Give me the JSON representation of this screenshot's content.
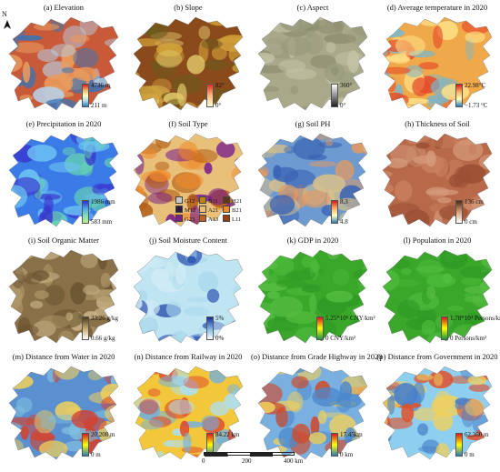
{
  "north_label": "N",
  "panels": [
    {
      "title": "(a) Elevation",
      "max": "4736 m",
      "min": "211 m",
      "legend": [
        "#d7191c",
        "#fdae61",
        "#ffffbf",
        "#abd9e9",
        "#2c7bb6"
      ],
      "fill": [
        "#c85a3a",
        "#e89a5c",
        "#b7d0e6",
        "#3a74b5"
      ]
    },
    {
      "title": "(b) Slope",
      "max": "82°",
      "min": "0°",
      "legend": [
        "#d7301f",
        "#fdbb84",
        "#ffffd4"
      ],
      "fill": [
        "#8a4a1c",
        "#d2a13a",
        "#6b5a1d",
        "#e0c86a"
      ]
    },
    {
      "title": "(c) Aspect",
      "max": "360°",
      "min": "0°",
      "legend": [
        "#ffffff",
        "#222222"
      ],
      "fill": [
        "#a9a98a",
        "#8e8f72",
        "#c3c3a6",
        "#9a9b7e"
      ]
    },
    {
      "title": "(d) Average temperature in 2020",
      "max": "22.98°C",
      "min": "−1.73 °C",
      "legend": [
        "#d7191c",
        "#fdae61",
        "#ffffbf",
        "#2c7bb6"
      ],
      "fill": [
        "#f0a94a",
        "#e64d2a",
        "#7cb6c9",
        "#ffe38a"
      ]
    },
    {
      "title": "(e) Precipitation in 2020",
      "max": "1986 mm",
      "min": "583 mm",
      "legend": [
        "#2b2bd9",
        "#4aa3f0",
        "#7fe0c0",
        "#b8f08a"
      ],
      "fill": [
        "#3b7be8",
        "#6cc2f2",
        "#68d4b0",
        "#3a3ad0"
      ]
    },
    {
      "title": "(f) Soil Type",
      "max": "",
      "min": "",
      "legend": [],
      "fill": [
        "#e8c07a",
        "#f08a2a",
        "#7a1f8c",
        "#b25a12"
      ]
    },
    {
      "title": "(g) Soil PH",
      "max": "8.3",
      "min": "4.8",
      "legend": [
        "#d7191c",
        "#fdae61",
        "#ffffbf",
        "#2c7bb6"
      ],
      "fill": [
        "#6d9ad0",
        "#d8c08a",
        "#e89a5c",
        "#3a64b5"
      ]
    },
    {
      "title": "(h) Thickness of Soil",
      "max": "136 cm",
      "min": "0 cm",
      "legend": [
        "#4a2a12",
        "#d4a07a",
        "#ffffff"
      ],
      "fill": [
        "#b8694a",
        "#c97f5e",
        "#9a4f34",
        "#d49a7a"
      ]
    },
    {
      "title": "(i) Soil Organic Matter",
      "max": "33.26 g/kg",
      "min": "0.66 g/kg",
      "legend": [
        "#4a3a1a",
        "#c4a86a",
        "#ffffff"
      ],
      "fill": [
        "#8a7048",
        "#b09a6a",
        "#6a5430",
        "#c9b488"
      ]
    },
    {
      "title": "(j) Soil Moisture Content",
      "max": "5%",
      "min": "0%",
      "legend": [
        "#1a2a9a",
        "#7ab0e0",
        "#ffffff"
      ],
      "fill": [
        "#bfe4f2",
        "#a8d8ec",
        "#2a4fb0",
        "#d2ecf6"
      ]
    },
    {
      "title": "(k) GDP in 2020",
      "max": "5.25*10⁶ CNY/km²",
      "min": "0 CNY/km²",
      "legend": [
        "#d7191c",
        "#ffff00",
        "#1a9641"
      ],
      "fill": [
        "#3aa62a",
        "#4bb83a",
        "#2f9a24",
        "#56be42"
      ]
    },
    {
      "title": "(l) Population in 2020",
      "max": "1.78*10⁴ Persons/km²",
      "min": "0 Persons/km²",
      "legend": [
        "#d7191c",
        "#ffff00",
        "#1a9641"
      ],
      "fill": [
        "#3aa62a",
        "#4bb83a",
        "#2f9a24",
        "#56be42"
      ]
    },
    {
      "title": "(m) Distance from Water in 2020",
      "max": "20,208 m",
      "min": "0 m",
      "legend": [
        "#d7191c",
        "#ffff00",
        "#2c7bb6"
      ],
      "fill": [
        "#5a8fd0",
        "#f2d05a",
        "#d8402a",
        "#7fc0e0"
      ]
    },
    {
      "title": "(n) Distance from Railway in 2020",
      "max": "84.22 km",
      "min": "0 km",
      "legend": [
        "#d7191c",
        "#ffff00",
        "#2c7bb6"
      ],
      "fill": [
        "#f2c83a",
        "#6fb0e0",
        "#e0402a",
        "#aee0f0"
      ]
    },
    {
      "title": "(o) Distance from Grade Highway in 2020",
      "max": "17.45km",
      "min": "0 km",
      "legend": [
        "#d7191c",
        "#ffff00",
        "#2c7bb6"
      ],
      "fill": [
        "#7ab0e0",
        "#f2d05a",
        "#d04a2a",
        "#4a88cc"
      ]
    },
    {
      "title": "(p) Distance from Government in 2020",
      "max": "62,360 m",
      "min": "0 m",
      "legend": [
        "#d7191c",
        "#ffff00",
        "#2c7bb6"
      ],
      "fill": [
        "#8ecff0",
        "#f2d05a",
        "#e0502a",
        "#4a80c8"
      ]
    }
  ],
  "soil_types": [
    {
      "code": "G12",
      "color": "#c8c8c8"
    },
    {
      "code": "B11",
      "color": "#b8860b"
    },
    {
      "code": "H21",
      "color": "#5a3a1a"
    },
    {
      "code": "M12",
      "color": "#2a1a3a"
    },
    {
      "code": "A21",
      "color": "#e8c07a"
    },
    {
      "code": "B21",
      "color": "#f08a2a"
    },
    {
      "code": "G23",
      "color": "#7a1f8c"
    },
    {
      "code": "A13",
      "color": "#c0601a"
    },
    {
      "code": "L11",
      "color": "#9a4010"
    }
  ],
  "scale": {
    "labels": [
      "0",
      "200",
      "400 km"
    ]
  }
}
